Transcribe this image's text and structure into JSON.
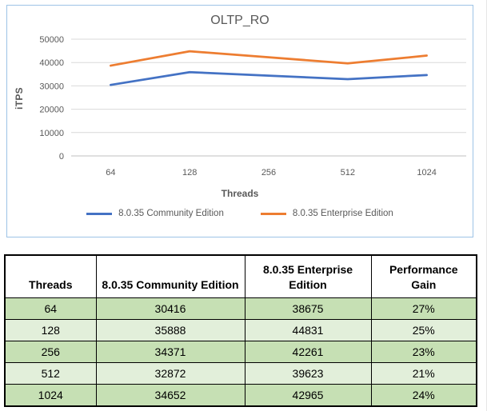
{
  "chart_data": {
    "type": "line",
    "title": "OLTP_RO",
    "xlabel": "Threads",
    "ylabel": "iTPS",
    "categories": [
      "64",
      "128",
      "256",
      "512",
      "1024"
    ],
    "series": [
      {
        "name": "8.0.35 Community Edition",
        "color": "#4472C4",
        "values": [
          30416,
          35888,
          34371,
          32872,
          34652
        ]
      },
      {
        "name": "8.0.35 Enterprise Edition",
        "color": "#ED7D31",
        "values": [
          38675,
          44831,
          42261,
          39623,
          42965
        ]
      }
    ],
    "ylim": [
      0,
      50000
    ],
    "ytick_step": 10000,
    "grid": true,
    "legend_position": "bottom",
    "border_color": "#9DC3E6",
    "grid_color": "#D9D9D9",
    "axis_line_color": "#BFBFBF",
    "text_color": "#595959"
  },
  "table": {
    "headers": [
      "Threads",
      "8.0.35 Community Edition",
      "8.0.35 Enterprise Edition",
      "Performance Gain"
    ],
    "rows": [
      [
        "64",
        "30416",
        "38675",
        "27%"
      ],
      [
        "128",
        "35888",
        "44831",
        "25%"
      ],
      [
        "256",
        "34371",
        "42261",
        "23%"
      ],
      [
        "512",
        "32872",
        "39623",
        "21%"
      ],
      [
        "1024",
        "34652",
        "42965",
        "24%"
      ]
    ],
    "row_colors": [
      "#C6E0B4",
      "#E2EFDA",
      "#C6E0B4",
      "#E2EFDA",
      "#C6E0B4"
    ],
    "header_background": "#FFFFFF",
    "border_color": "#000000"
  }
}
